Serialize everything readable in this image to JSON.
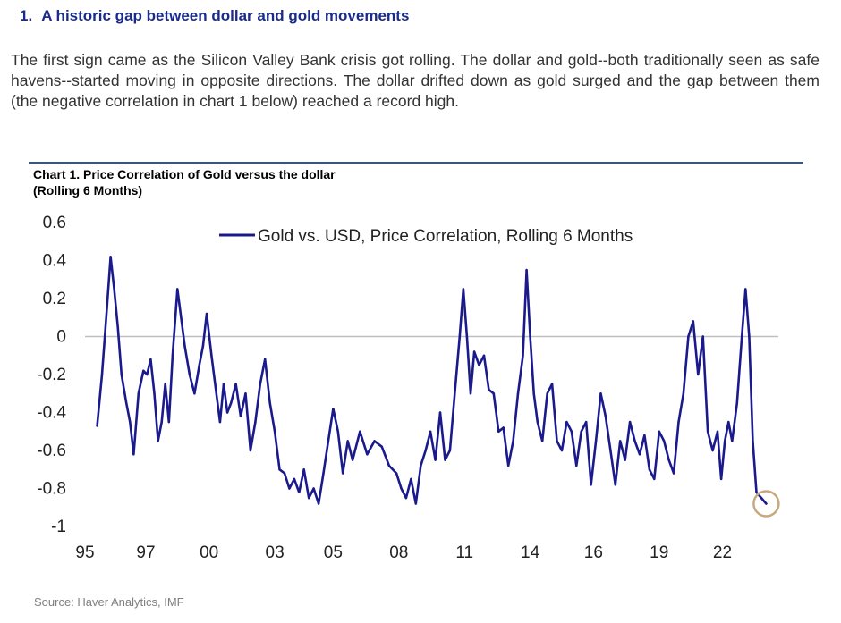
{
  "heading": {
    "number": "1.",
    "text": "A historic gap between dollar and gold movements"
  },
  "intro": "The first sign came as the Silicon Valley Bank crisis got rolling. The dollar and gold--both traditionally seen as safe havens--started moving in opposite directions. The dollar drifted down as gold surged and the gap between them (the negative correlation in chart 1 below) reached a record high.",
  "chart_title_line1": "Chart 1. Price Correlation of Gold versus the dollar",
  "chart_title_line2": "(Rolling 6 Months)",
  "source": "Source: Haver Analytics, IMF",
  "colors": {
    "line": "#1a1a8c",
    "axis": "#bfbfbf",
    "highlight": "#c8a97e",
    "heading": "#1a2b8c"
  },
  "chart_data": {
    "type": "line",
    "title": "Chart 1. Price Correlation of Gold versus the dollar (Rolling 6 Months)",
    "xlabel": "",
    "ylabel": "",
    "ylim": [
      -1,
      0.6
    ],
    "yticks": [
      "0.6",
      "0.4",
      "0.2",
      "0",
      "-0.2",
      "-0.4",
      "-0.6",
      "-0.8",
      "-1"
    ],
    "xticks": [
      "95",
      "97",
      "00",
      "03",
      "05",
      "08",
      "11",
      "14",
      "16",
      "19",
      "22"
    ],
    "xlim": [
      1995,
      2023.5
    ],
    "legend": "top-center",
    "grid": false,
    "series": [
      {
        "name": "Gold vs. USD, Price Correlation, Rolling 6 Months",
        "x": [
          1995.5,
          1995.7,
          1995.9,
          1996.05,
          1996.2,
          1996.35,
          1996.5,
          1996.7,
          1996.85,
          1997.0,
          1997.2,
          1997.4,
          1997.55,
          1997.7,
          1997.85,
          1998.0,
          1998.15,
          1998.3,
          1998.45,
          1998.6,
          1998.8,
          1998.95,
          1999.1,
          1999.3,
          1999.5,
          1999.7,
          1999.85,
          2000.0,
          2000.2,
          2000.4,
          2000.55,
          2000.7,
          2000.85,
          2001.0,
          2001.2,
          2001.4,
          2001.6,
          2001.8,
          2002.0,
          2002.2,
          2002.4,
          2002.6,
          2002.8,
          2003.0,
          2003.2,
          2003.4,
          2003.6,
          2003.8,
          2004.0,
          2004.2,
          2004.4,
          2004.6,
          2004.8,
          2005.0,
          2005.2,
          2005.4,
          2005.6,
          2005.8,
          2006.0,
          2006.3,
          2006.6,
          2006.9,
          2007.2,
          2007.5,
          2007.8,
          2008.0,
          2008.2,
          2008.4,
          2008.6,
          2008.8,
          2009.0,
          2009.2,
          2009.4,
          2009.6,
          2009.8,
          2010.0,
          2010.2,
          2010.4,
          2010.55,
          2010.7,
          2010.85,
          2011.0,
          2011.2,
          2011.4,
          2011.6,
          2011.8,
          2012.0,
          2012.2,
          2012.4,
          2012.6,
          2012.8,
          2013.0,
          2013.15,
          2013.3,
          2013.45,
          2013.6,
          2013.8,
          2014.0,
          2014.2,
          2014.4,
          2014.6,
          2014.8,
          2015.0,
          2015.2,
          2015.4,
          2015.6,
          2015.8,
          2016.0,
          2016.2,
          2016.4,
          2016.6,
          2016.8,
          2017.0,
          2017.2,
          2017.4,
          2017.6,
          2017.8,
          2018.0,
          2018.2,
          2018.4,
          2018.6,
          2018.8,
          2019.0,
          2019.2,
          2019.4,
          2019.6,
          2019.8,
          2020.0,
          2020.2,
          2020.4,
          2020.6,
          2020.8,
          2021.0,
          2021.15,
          2021.3,
          2021.45,
          2021.6,
          2021.8,
          2022.0,
          2022.15,
          2022.3,
          2022.45,
          2022.6,
          2022.8,
          2023.0
        ],
        "values": [
          -0.47,
          -0.2,
          0.15,
          0.42,
          0.25,
          0.05,
          -0.2,
          -0.35,
          -0.45,
          -0.62,
          -0.3,
          -0.18,
          -0.2,
          -0.12,
          -0.3,
          -0.55,
          -0.45,
          -0.25,
          -0.45,
          -0.1,
          0.25,
          0.1,
          -0.05,
          -0.2,
          -0.3,
          -0.15,
          -0.05,
          0.12,
          -0.1,
          -0.3,
          -0.45,
          -0.25,
          -0.4,
          -0.35,
          -0.25,
          -0.42,
          -0.3,
          -0.6,
          -0.45,
          -0.25,
          -0.12,
          -0.35,
          -0.5,
          -0.7,
          -0.72,
          -0.8,
          -0.75,
          -0.82,
          -0.7,
          -0.85,
          -0.8,
          -0.88,
          -0.72,
          -0.55,
          -0.38,
          -0.5,
          -0.72,
          -0.55,
          -0.65,
          -0.5,
          -0.62,
          -0.55,
          -0.58,
          -0.68,
          -0.72,
          -0.8,
          -0.85,
          -0.75,
          -0.88,
          -0.68,
          -0.6,
          -0.5,
          -0.65,
          -0.4,
          -0.65,
          -0.6,
          -0.3,
          0.0,
          0.25,
          0.0,
          -0.3,
          -0.08,
          -0.15,
          -0.1,
          -0.28,
          -0.3,
          -0.5,
          -0.48,
          -0.68,
          -0.55,
          -0.3,
          -0.1,
          0.35,
          0.0,
          -0.3,
          -0.45,
          -0.55,
          -0.3,
          -0.25,
          -0.55,
          -0.6,
          -0.45,
          -0.5,
          -0.68,
          -0.5,
          -0.45,
          -0.78,
          -0.55,
          -0.3,
          -0.42,
          -0.6,
          -0.78,
          -0.55,
          -0.65,
          -0.45,
          -0.55,
          -0.62,
          -0.52,
          -0.7,
          -0.75,
          -0.5,
          -0.55,
          -0.65,
          -0.72,
          -0.45,
          -0.3,
          0.0,
          0.08,
          -0.2,
          0.0,
          -0.5,
          -0.6,
          -0.5,
          -0.75,
          -0.55,
          -0.45,
          -0.55,
          -0.35,
          0.0,
          0.25,
          0.0,
          -0.55,
          -0.82,
          -0.85,
          -0.88
        ]
      }
    ]
  }
}
